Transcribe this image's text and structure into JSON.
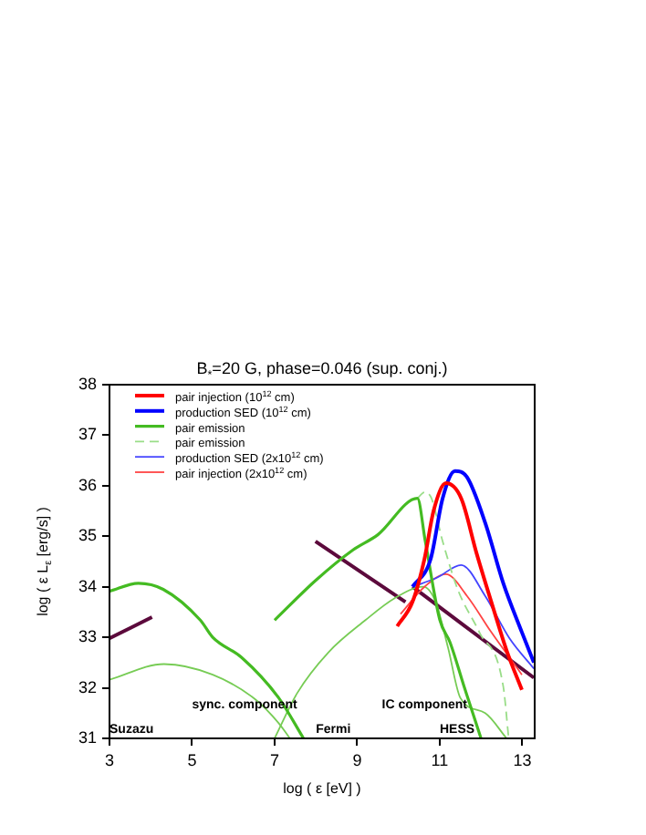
{
  "chart_data": {
    "type": "line",
    "title": "B$_{*}$=20 G, phase=0.046 (sup. conj.)",
    "xlabel": "log ( ε [eV] )",
    "ylabel": "log ( ε L$_{ε}$ [erg/s] )",
    "xlim": [
      3,
      13.3
    ],
    "ylim": [
      31,
      38
    ],
    "xticks": [
      3,
      5,
      7,
      9,
      11,
      13
    ],
    "yticks": [
      31,
      32,
      33,
      34,
      35,
      36,
      37,
      38
    ],
    "grid": false,
    "legend": "top left",
    "marker": "none",
    "series": [
      {
        "name": "pair injection (10$^{12}$ cm)",
        "color": "#ff0000",
        "x": [
          9.97,
          10.34,
          10.63,
          10.85,
          11.15,
          11.52,
          11.89,
          12.25,
          12.62,
          12.99
        ],
        "values": [
          33.22,
          33.7,
          34.55,
          35.5,
          36.05,
          35.75,
          34.67,
          33.7,
          32.74,
          31.96
        ]
      },
      {
        "name": "production SED (10$^{12}$ cm)",
        "color": "#0000ff",
        "x": [
          10.34,
          10.78,
          11.07,
          11.37,
          11.66,
          12.1,
          12.54,
          12.99,
          13.28
        ],
        "values": [
          34.0,
          34.55,
          35.75,
          36.29,
          36.17,
          35.27,
          34.07,
          33.1,
          32.5
        ]
      },
      {
        "name": "pair emission",
        "color": "#44bb22",
        "x": [
          7.0,
          8.0,
          8.9,
          9.5,
          10.46,
          10.65,
          11.0,
          11.25,
          11.6,
          12.0
        ],
        "values": [
          33.34,
          34.13,
          34.73,
          35.03,
          35.75,
          34.9,
          33.35,
          32.9,
          32.0,
          31.0
        ]
      },
      {
        "name": "pair emission",
        "color": "#99dd88",
        "line_style": "dashed",
        "x": [
          10.46,
          10.63,
          10.8,
          11.07,
          11.44,
          11.96,
          12.54,
          12.67
        ],
        "values": [
          35.75,
          35.87,
          35.75,
          34.9,
          33.94,
          33.1,
          32.02,
          31.0
        ]
      },
      {
        "name": "production SED (2x10$^{12}$ cm)",
        "color": "#4444ff",
        "x": [
          10.34,
          10.93,
          11.52,
          12.1,
          12.69,
          13.28
        ],
        "values": [
          34.0,
          34.18,
          34.43,
          33.82,
          32.98,
          32.38
        ]
      },
      {
        "name": "pair injection (2x10$^{12}$ cm)",
        "color": "#ff4444",
        "x": [
          10.05,
          10.63,
          11.15,
          11.66,
          12.25,
          12.99
        ],
        "values": [
          33.46,
          34.0,
          34.25,
          33.82,
          33.1,
          32.26
        ]
      },
      {
        "color": "#44bb22",
        "x": [
          3.0,
          3.7,
          4.3,
          5.2,
          5.5,
          6.2,
          7.1,
          7.7
        ],
        "values": [
          33.91,
          34.07,
          33.95,
          33.34,
          33.0,
          32.6,
          31.8,
          31.0
        ]
      },
      {
        "color": "#77cc55",
        "x": [
          3.0,
          4.32,
          5.5,
          6.52,
          7.1,
          7.37
        ],
        "values": [
          32.16,
          32.47,
          32.26,
          31.78,
          31.3,
          31.0
        ]
      },
      {
        "color": "#77cc55",
        "x": [
          7.0,
          7.55,
          8.3,
          9.2,
          9.9,
          10.6,
          10.9,
          11.2,
          11.5,
          12.1,
          12.62
        ],
        "values": [
          31.0,
          31.9,
          32.7,
          33.34,
          33.77,
          34.0,
          33.7,
          32.8,
          31.8,
          31.5,
          31.0
        ]
      },
      {
        "color": "#5c0a3c",
        "x": [
          3.0,
          4.03
        ],
        "values": [
          32.98,
          33.4
        ]
      },
      {
        "color": "#5c0a3c",
        "x": [
          7.99,
          10.17
        ],
        "values": [
          34.9,
          33.7
        ]
      },
      {
        "color": "#5c0a3c",
        "x": [
          10.34,
          13.28
        ],
        "values": [
          34.0,
          32.2
        ]
      }
    ],
    "annotations": [
      "sync. component",
      "IC component",
      "Suzazu",
      "Fermi",
      "HESS"
    ]
  }
}
